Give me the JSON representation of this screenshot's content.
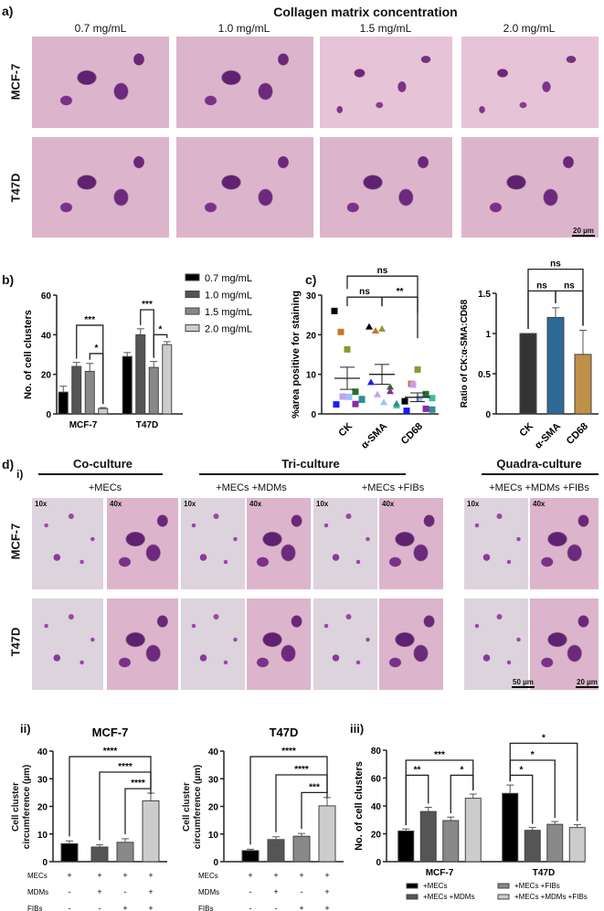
{
  "panel_a": {
    "label": "a)",
    "title": "Collagen matrix concentration",
    "columns": [
      "0.7 mg/mL",
      "1.0 mg/mL",
      "1.5 mg/mL",
      "2.0 mg/mL"
    ],
    "rows": [
      "MCF-7",
      "T47D"
    ],
    "scale_bar": "20 µm"
  },
  "panel_b_label": "b)",
  "panel_c_label": "c)",
  "panel_d": {
    "label": "d)",
    "sub_i": "i)",
    "sub_ii": "ii)",
    "sub_iii": "iii)",
    "groups": [
      "Co-culture",
      "Tri-culture",
      "Quadra-culture"
    ],
    "conditions": [
      "+MECs",
      "+MECs +MDMs",
      "+MECs +FIBs",
      "+MECs +MDMs +FIBs"
    ],
    "magnifications": [
      "10x",
      "40x"
    ],
    "rows": [
      "MCF-7",
      "T47D"
    ],
    "scale_bars": [
      "50 µm",
      "20 µm"
    ]
  },
  "chart_data": [
    {
      "id": "b",
      "type": "bar",
      "ylabel": "No. of cell clusters",
      "ylim": [
        0,
        60
      ],
      "yticks": [
        0,
        20,
        40,
        60
      ],
      "categories": [
        "MCF-7",
        "T47D"
      ],
      "series": [
        {
          "name": "0.7 mg/mL",
          "values": [
            11,
            29
          ],
          "errors": [
            3,
            2
          ],
          "color": "#000000"
        },
        {
          "name": "1.0 mg/mL",
          "values": [
            24,
            40
          ],
          "errors": [
            2,
            3
          ],
          "color": "#555555"
        },
        {
          "name": "1.5 mg/mL",
          "values": [
            21.5,
            23.5
          ],
          "errors": [
            4,
            3
          ],
          "color": "#888888"
        },
        {
          "name": "2.0 mg/mL",
          "values": [
            2.7,
            35
          ],
          "errors": [
            0.5,
            1.5
          ],
          "color": "#cccccc"
        }
      ],
      "significance": [
        {
          "group": 0,
          "from": 1,
          "to": 3,
          "level": 44.8,
          "label": "***"
        },
        {
          "group": 0,
          "from": 2,
          "to": 3,
          "level": 30.5,
          "label": "*"
        },
        {
          "group": 1,
          "from": 1,
          "to": 2,
          "level": 52.6,
          "label": "***"
        },
        {
          "group": 1,
          "from": 2,
          "to": 3,
          "level": 40,
          "label": "*"
        }
      ],
      "legend": "right"
    },
    {
      "id": "c1",
      "type": "scatter",
      "ylabel": "%area positive for staining",
      "ylim": [
        0,
        30
      ],
      "yticks": [
        0,
        10,
        20,
        30
      ],
      "categories": [
        "CK",
        "α-SMA",
        "CD68"
      ],
      "points": [
        [
          26,
          20.7,
          16.3,
          5.6,
          3.8,
          2.4,
          4.4,
          4.3,
          2.5,
          3.6
        ],
        [
          22,
          21,
          21.5,
          6.8,
          2.1,
          8,
          4.9,
          2.9,
          5.7,
          2.6
        ],
        [
          3.2,
          7.6,
          11.2,
          5,
          4,
          0.8,
          7.4,
          3.9,
          1.3,
          1.1
        ]
      ],
      "point_colors": [
        "#000000",
        "#c8742e",
        "#8c9a2c",
        "#2f6b2b",
        "#3fbf94",
        "#1b1bff",
        "#c89cf2",
        "#9ec2f2",
        "#8a2aa8",
        "#2a8e9a"
      ],
      "markers": [
        "square",
        "triangle",
        "square"
      ],
      "means": [
        9,
        10,
        4.2
      ],
      "sem": [
        2.8,
        2.5,
        1.1
      ],
      "significance": [
        {
          "from": 0,
          "to": 2,
          "level": 34.8,
          "label": "ns"
        },
        {
          "from": 0,
          "to": 1,
          "level": 29.5,
          "label": "ns"
        },
        {
          "from": 1,
          "to": 2,
          "level": 29.5,
          "label": "**"
        }
      ]
    },
    {
      "id": "c2",
      "type": "bar",
      "ylabel": "Ratio of CK:α-SMA:CD68",
      "ylim": [
        0,
        1.5
      ],
      "yticks": [
        0.0,
        0.5,
        1.0,
        1.5
      ],
      "categories": [
        "CK",
        "α-SMA",
        "CD68"
      ],
      "values": [
        1.0,
        1.2,
        0.74
      ],
      "errors": [
        0,
        0.12,
        0.3
      ],
      "colors": [
        "#333333",
        "#2e6a96",
        "#c09048"
      ],
      "significance": [
        {
          "from": 0,
          "to": 2,
          "level": 1.8,
          "label": "ns"
        },
        {
          "from": 0,
          "to": 1,
          "level": 1.53,
          "label": "ns"
        },
        {
          "from": 1,
          "to": 2,
          "level": 1.53,
          "label": "ns"
        }
      ]
    },
    {
      "id": "d_ii_mcf7",
      "type": "bar",
      "title": "MCF-7",
      "ylabel": "Cell cluster circumference (µm)",
      "ylim": [
        0,
        40
      ],
      "yticks": [
        0,
        10,
        20,
        30,
        40
      ],
      "values": [
        6.5,
        5.3,
        7,
        22
      ],
      "errors": [
        1,
        0.8,
        1.3,
        2.8
      ],
      "colors": [
        "#000000",
        "#555555",
        "#888888",
        "#cccccc"
      ],
      "condition_rows": [
        {
          "label": "MECs",
          "marks": [
            "+",
            "+",
            "+",
            "+"
          ]
        },
        {
          "label": "MDMs",
          "marks": [
            "-",
            "+",
            "-",
            "+"
          ]
        },
        {
          "label": "FIBs",
          "marks": [
            "-",
            "-",
            "+",
            "+"
          ]
        }
      ],
      "significance": [
        {
          "from": 0,
          "to": 3,
          "level": 38,
          "label": "****"
        },
        {
          "from": 1,
          "to": 3,
          "level": 32.4,
          "label": "****"
        },
        {
          "from": 2,
          "to": 3,
          "level": 26.4,
          "label": "****"
        }
      ]
    },
    {
      "id": "d_ii_t47d",
      "type": "bar",
      "title": "T47D",
      "ylabel": "Cell cluster circumference (µm)",
      "ylim": [
        0,
        40
      ],
      "yticks": [
        0,
        10,
        20,
        30,
        40
      ],
      "values": [
        4,
        8,
        9.2,
        20.2
      ],
      "errors": [
        0.5,
        1,
        1,
        3
      ],
      "colors": [
        "#000000",
        "#555555",
        "#888888",
        "#cccccc"
      ],
      "condition_rows": [
        {
          "label": "MECs",
          "marks": [
            "+",
            "+",
            "+",
            "+"
          ]
        },
        {
          "label": "MDMs",
          "marks": [
            "-",
            "+",
            "-",
            "+"
          ]
        },
        {
          "label": "FIBs",
          "marks": [
            "-",
            "-",
            "+",
            "+"
          ]
        }
      ],
      "significance": [
        {
          "from": 0,
          "to": 3,
          "level": 38,
          "label": "****"
        },
        {
          "from": 1,
          "to": 3,
          "level": 31.4,
          "label": "****"
        },
        {
          "from": 2,
          "to": 3,
          "level": 25,
          "label": "***"
        }
      ]
    },
    {
      "id": "d_iii",
      "type": "bar",
      "ylabel": "No. of cell clusters",
      "ylim": [
        0,
        80
      ],
      "yticks": [
        0,
        20,
        40,
        60,
        80
      ],
      "categories": [
        "MCF-7",
        "T47D"
      ],
      "series": [
        {
          "name": "+MECs",
          "values": [
            22,
            49
          ],
          "errors": [
            1.5,
            6
          ],
          "color": "#000000"
        },
        {
          "name": "+MECs +MDMs",
          "values": [
            36,
            22.5
          ],
          "errors": [
            3,
            2
          ],
          "color": "#555555"
        },
        {
          "name": "+MECs +FIBs",
          "values": [
            29.5,
            26.8
          ],
          "errors": [
            2.5,
            2
          ],
          "color": "#888888"
        },
        {
          "name": "+MECs +MDMs +FIBs",
          "values": [
            45.5,
            24.5
          ],
          "errors": [
            3,
            2
          ],
          "color": "#cccccc"
        }
      ],
      "significance": [
        {
          "group": 0,
          "from": 0,
          "to": 3,
          "level": 72.8,
          "label": "***"
        },
        {
          "group": 0,
          "from": 0,
          "to": 1,
          "level": 62,
          "label": "**"
        },
        {
          "group": 0,
          "from": 2,
          "to": 3,
          "level": 62,
          "label": "*"
        },
        {
          "group": 1,
          "from": 0,
          "to": 3,
          "level": 85,
          "label": "*"
        },
        {
          "group": 1,
          "from": 0,
          "to": 2,
          "level": 72.8,
          "label": "*"
        },
        {
          "group": 1,
          "from": 0,
          "to": 1,
          "level": 62,
          "label": "*"
        }
      ],
      "legend": "bottom"
    }
  ]
}
